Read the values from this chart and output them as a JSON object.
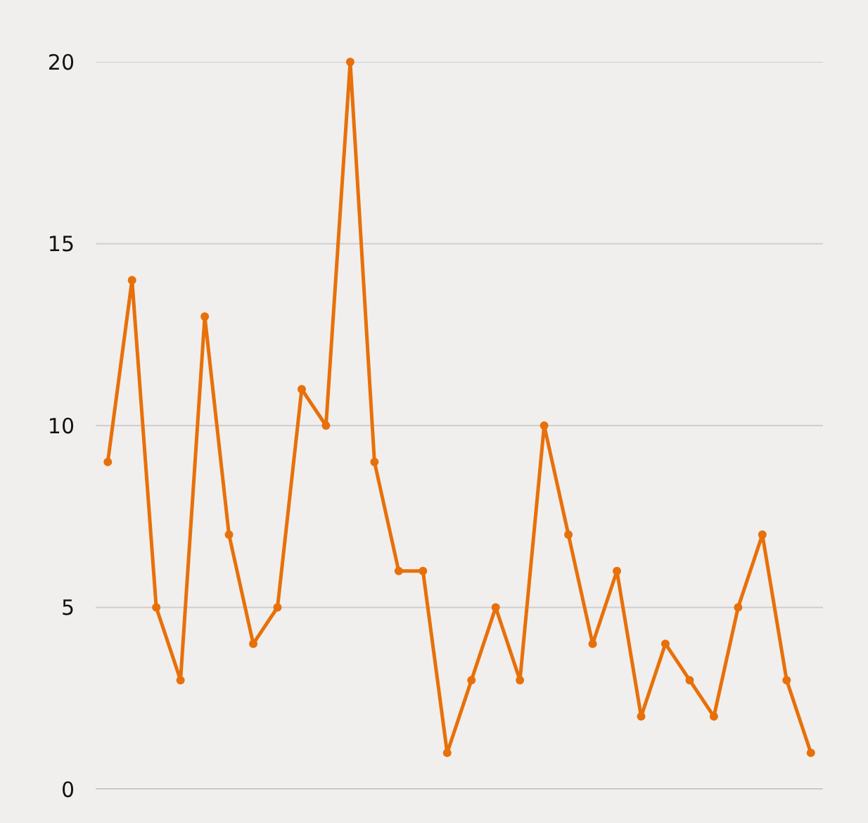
{
  "chart_data": {
    "type": "line",
    "categories": [
      null,
      null,
      null,
      null,
      null,
      null,
      null,
      null,
      null,
      null,
      null,
      null,
      null,
      null,
      null,
      null,
      null,
      null,
      null,
      null,
      null,
      null,
      null,
      null,
      null,
      null,
      null,
      null,
      null,
      null
    ],
    "series": [
      {
        "color": "#e8700a",
        "values": [
          9,
          14,
          5,
          3,
          13,
          7,
          4,
          5,
          11,
          10,
          20,
          9,
          6,
          6,
          1,
          3,
          5,
          3,
          10,
          7,
          4,
          6,
          2,
          4,
          3,
          2,
          5,
          7,
          3,
          1
        ]
      }
    ],
    "ylim": [
      0,
      20
    ],
    "yticks": [
      0,
      5,
      10,
      15,
      20
    ],
    "grid": "y",
    "marker": "circle",
    "line_style": "solid"
  }
}
